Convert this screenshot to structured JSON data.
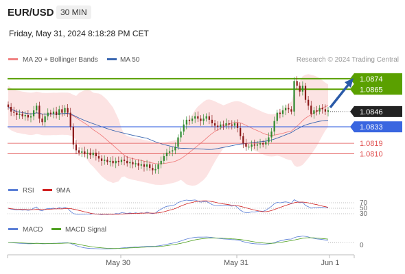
{
  "header": {
    "symbol": "EUR/USD",
    "timeframe": "30 MIN",
    "datetime": "Friday, May 31, 2024 8:18:28 PM CET"
  },
  "legend": {
    "ma20_label": "MA 20 + Bollinger Bands",
    "ma50_label": "MA 50",
    "rsi_label": "RSI",
    "ma9_label": "9MA",
    "macd_label": "MACD",
    "macd_signal_label": "MACD Signal"
  },
  "credit": "Research © 2024 Trading Central",
  "colors": {
    "candle_up": "#2f8a2f",
    "candle_down": "#8b1a1a",
    "ma20": "#f08080",
    "bollinger_fill": "#fbdede",
    "ma50": "#3a66b0",
    "resistance": "#5aa000",
    "support_blue": "#3a66e0",
    "support_red": "#e05050",
    "current": "#222222",
    "rsi": "#5b7fd6",
    "rsi_ma9": "#d02020",
    "macd": "#5b7fd6",
    "macd_signal": "#4fa020",
    "arrow": "#2a5aa8"
  },
  "chart_data": [
    {
      "type": "candlestick",
      "panel": "price",
      "y_unit": "EUR/USD",
      "ylim": [
        1.0787,
        1.0885
      ],
      "x_ticks": [
        "May 30",
        "May 31",
        "Jun 1"
      ],
      "series_labels": [
        "MA 20 + Bollinger Bands",
        "MA 50"
      ],
      "levels": [
        {
          "value": 1.0874,
          "label": "1.0874",
          "kind": "resistance"
        },
        {
          "value": 1.0865,
          "label": "1.0865",
          "kind": "resistance"
        },
        {
          "value": 1.0846,
          "label": "1.0846",
          "kind": "current"
        },
        {
          "value": 1.0833,
          "label": "1.0833",
          "kind": "support"
        },
        {
          "value": 1.0819,
          "label": "1.0819",
          "kind": "support-minor"
        },
        {
          "value": 1.081,
          "label": "1.0810",
          "kind": "support-minor"
        }
      ],
      "close": [
        1.085,
        1.0846,
        1.0845,
        1.0843,
        1.0844,
        1.0842,
        1.0843,
        1.0841,
        1.0842,
        1.0847,
        1.0851,
        1.084,
        1.0837,
        1.0842,
        1.0845,
        1.0844,
        1.0846,
        1.0843,
        1.0848,
        1.0845,
        1.0849,
        1.0845,
        1.0833,
        1.0818,
        1.0813,
        1.0811,
        1.0812,
        1.081,
        1.0811,
        1.0809,
        1.0811,
        1.0808,
        1.0806,
        1.0804,
        1.0805,
        1.0803,
        1.0804,
        1.0802,
        1.0804,
        1.0803,
        1.0805,
        1.0804,
        1.0802,
        1.0803,
        1.0801,
        1.0802,
        1.08,
        1.0801,
        1.0799,
        1.0801,
        1.0798,
        1.0796,
        1.0797,
        1.0801,
        1.0804,
        1.0808,
        1.0811,
        1.0812,
        1.0813,
        1.0816,
        1.0824,
        1.0829,
        1.0835,
        1.0839,
        1.0838,
        1.084,
        1.0842,
        1.084,
        1.0838,
        1.084,
        1.0842,
        1.0839,
        1.0836,
        1.0834,
        1.0833,
        1.0835,
        1.0834,
        1.0836,
        1.0835,
        1.0834,
        1.0836,
        1.0832,
        1.0825,
        1.0819,
        1.0816,
        1.0816,
        1.0818,
        1.0817,
        1.0818,
        1.0819,
        1.0818,
        1.082,
        1.0824,
        1.0829,
        1.0838,
        1.0845,
        1.0844,
        1.0847,
        1.0849,
        1.0848,
        1.0846,
        1.0872,
        1.0868,
        1.0863,
        1.0868,
        1.0856,
        1.0851,
        1.0844,
        1.0847,
        1.0846,
        1.0849,
        1.0848,
        1.0846,
        1.0847
      ]
    },
    {
      "type": "line",
      "panel": "RSI",
      "series_labels": [
        "RSI",
        "9MA"
      ],
      "y_ticks": [
        70,
        50,
        30
      ],
      "ylim": [
        20,
        80
      ]
    },
    {
      "type": "line",
      "panel": "MACD",
      "series_labels": [
        "MACD",
        "MACD Signal"
      ],
      "y_ticks": [
        0
      ],
      "ylim": [
        -0.0012,
        0.0012
      ]
    }
  ]
}
